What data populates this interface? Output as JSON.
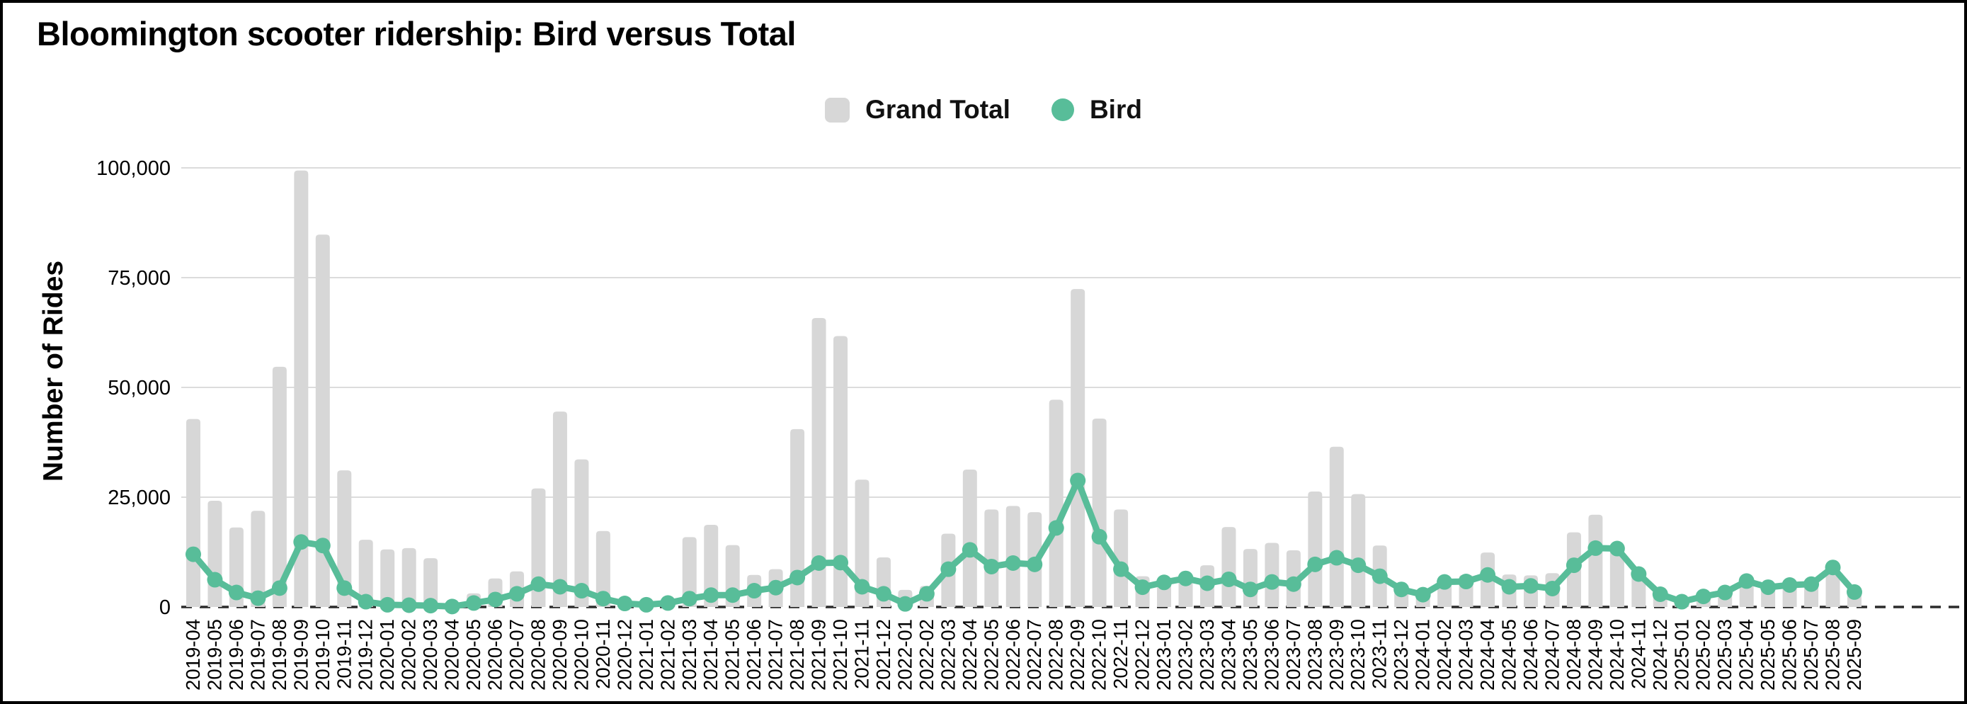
{
  "chart_data": {
    "type": "bar+line",
    "title": "Bloomington scooter ridership: Bird versus Total",
    "ylabel": "Number of Rides",
    "xlabel": "",
    "ylim": [
      0,
      100000
    ],
    "y_ticks": [
      0,
      25000,
      50000,
      75000,
      100000
    ],
    "grid": "horizontal",
    "legend_position": "top-center",
    "background": "#ffffff",
    "frame_border_color": "#000000",
    "gridline_color": "#dcdcdc",
    "baseline_style": "dashed-black",
    "categories": [
      "2019-04",
      "2019-05",
      "2019-06",
      "2019-07",
      "2019-08",
      "2019-09",
      "2019-10",
      "2019-11",
      "2019-12",
      "2020-01",
      "2020-02",
      "2020-03",
      "2020-04",
      "2020-05",
      "2020-06",
      "2020-07",
      "2020-08",
      "2020-09",
      "2020-10",
      "2020-11",
      "2020-12",
      "2021-01",
      "2021-02",
      "2021-03",
      "2021-04",
      "2021-05",
      "2021-06",
      "2021-07",
      "2021-08",
      "2021-09",
      "2021-10",
      "2021-11",
      "2021-12",
      "2022-01",
      "2022-02",
      "2022-03",
      "2022-04",
      "2022-05",
      "2022-06",
      "2022-07",
      "2022-08",
      "2022-09",
      "2022-10",
      "2022-11",
      "2022-12",
      "2023-01",
      "2023-02",
      "2023-03",
      "2023-04",
      "2023-05",
      "2023-06",
      "2023-07",
      "2023-08",
      "2023-09",
      "2023-10",
      "2023-11",
      "2023-12",
      "2024-01",
      "2024-02",
      "2024-03",
      "2024-04",
      "2024-05",
      "2024-06",
      "2024-07",
      "2024-08",
      "2024-09",
      "2024-10",
      "2024-11",
      "2024-12",
      "2025-01",
      "2025-02",
      "2025-03",
      "2025-04",
      "2025-05",
      "2025-06",
      "2025-07",
      "2025-08",
      "2025-09"
    ],
    "series": [
      {
        "name": "Grand Total",
        "type": "bar",
        "color": "#d7d7d7",
        "values": [
          42800,
          24200,
          18100,
          21900,
          54700,
          99400,
          84800,
          31100,
          15300,
          13100,
          13400,
          11100,
          200,
          3100,
          6500,
          8100,
          27000,
          44500,
          33600,
          17300,
          800,
          700,
          2000,
          15900,
          18700,
          14100,
          7300,
          8600,
          40500,
          65800,
          61700,
          29000,
          11300,
          3900,
          4800,
          16700,
          31300,
          22200,
          23000,
          21600,
          47200,
          72400,
          42900,
          22200,
          7000,
          6500,
          6800,
          9500,
          18200,
          13200,
          14600,
          12900,
          26300,
          36500,
          25700,
          14000,
          4500,
          3300,
          6000,
          7300,
          12400,
          7400,
          7200,
          7700,
          17000,
          21000,
          13500,
          8500,
          3000,
          1700,
          2700,
          3500,
          6200,
          4800,
          5200,
          5800,
          9800,
          3900
        ]
      },
      {
        "name": "Bird",
        "type": "line",
        "color": "#58bd99",
        "values": [
          12000,
          6200,
          3300,
          2000,
          4300,
          14800,
          14000,
          4300,
          1200,
          500,
          400,
          300,
          100,
          900,
          1700,
          3000,
          5200,
          4600,
          3700,
          1900,
          800,
          500,
          900,
          1900,
          2700,
          2700,
          3700,
          4400,
          6700,
          10000,
          10100,
          4600,
          3000,
          700,
          3000,
          8600,
          13000,
          9200,
          10000,
          9700,
          18000,
          28800,
          16000,
          8600,
          4500,
          5600,
          6500,
          5400,
          6300,
          4000,
          5700,
          5200,
          9700,
          11200,
          9500,
          7000,
          4000,
          2800,
          5700,
          5800,
          7300,
          4600,
          4800,
          4200,
          9500,
          13400,
          13300,
          7500,
          2900,
          1200,
          2400,
          3300,
          5900,
          4500,
          5000,
          5200,
          9000,
          3400
        ]
      }
    ]
  }
}
